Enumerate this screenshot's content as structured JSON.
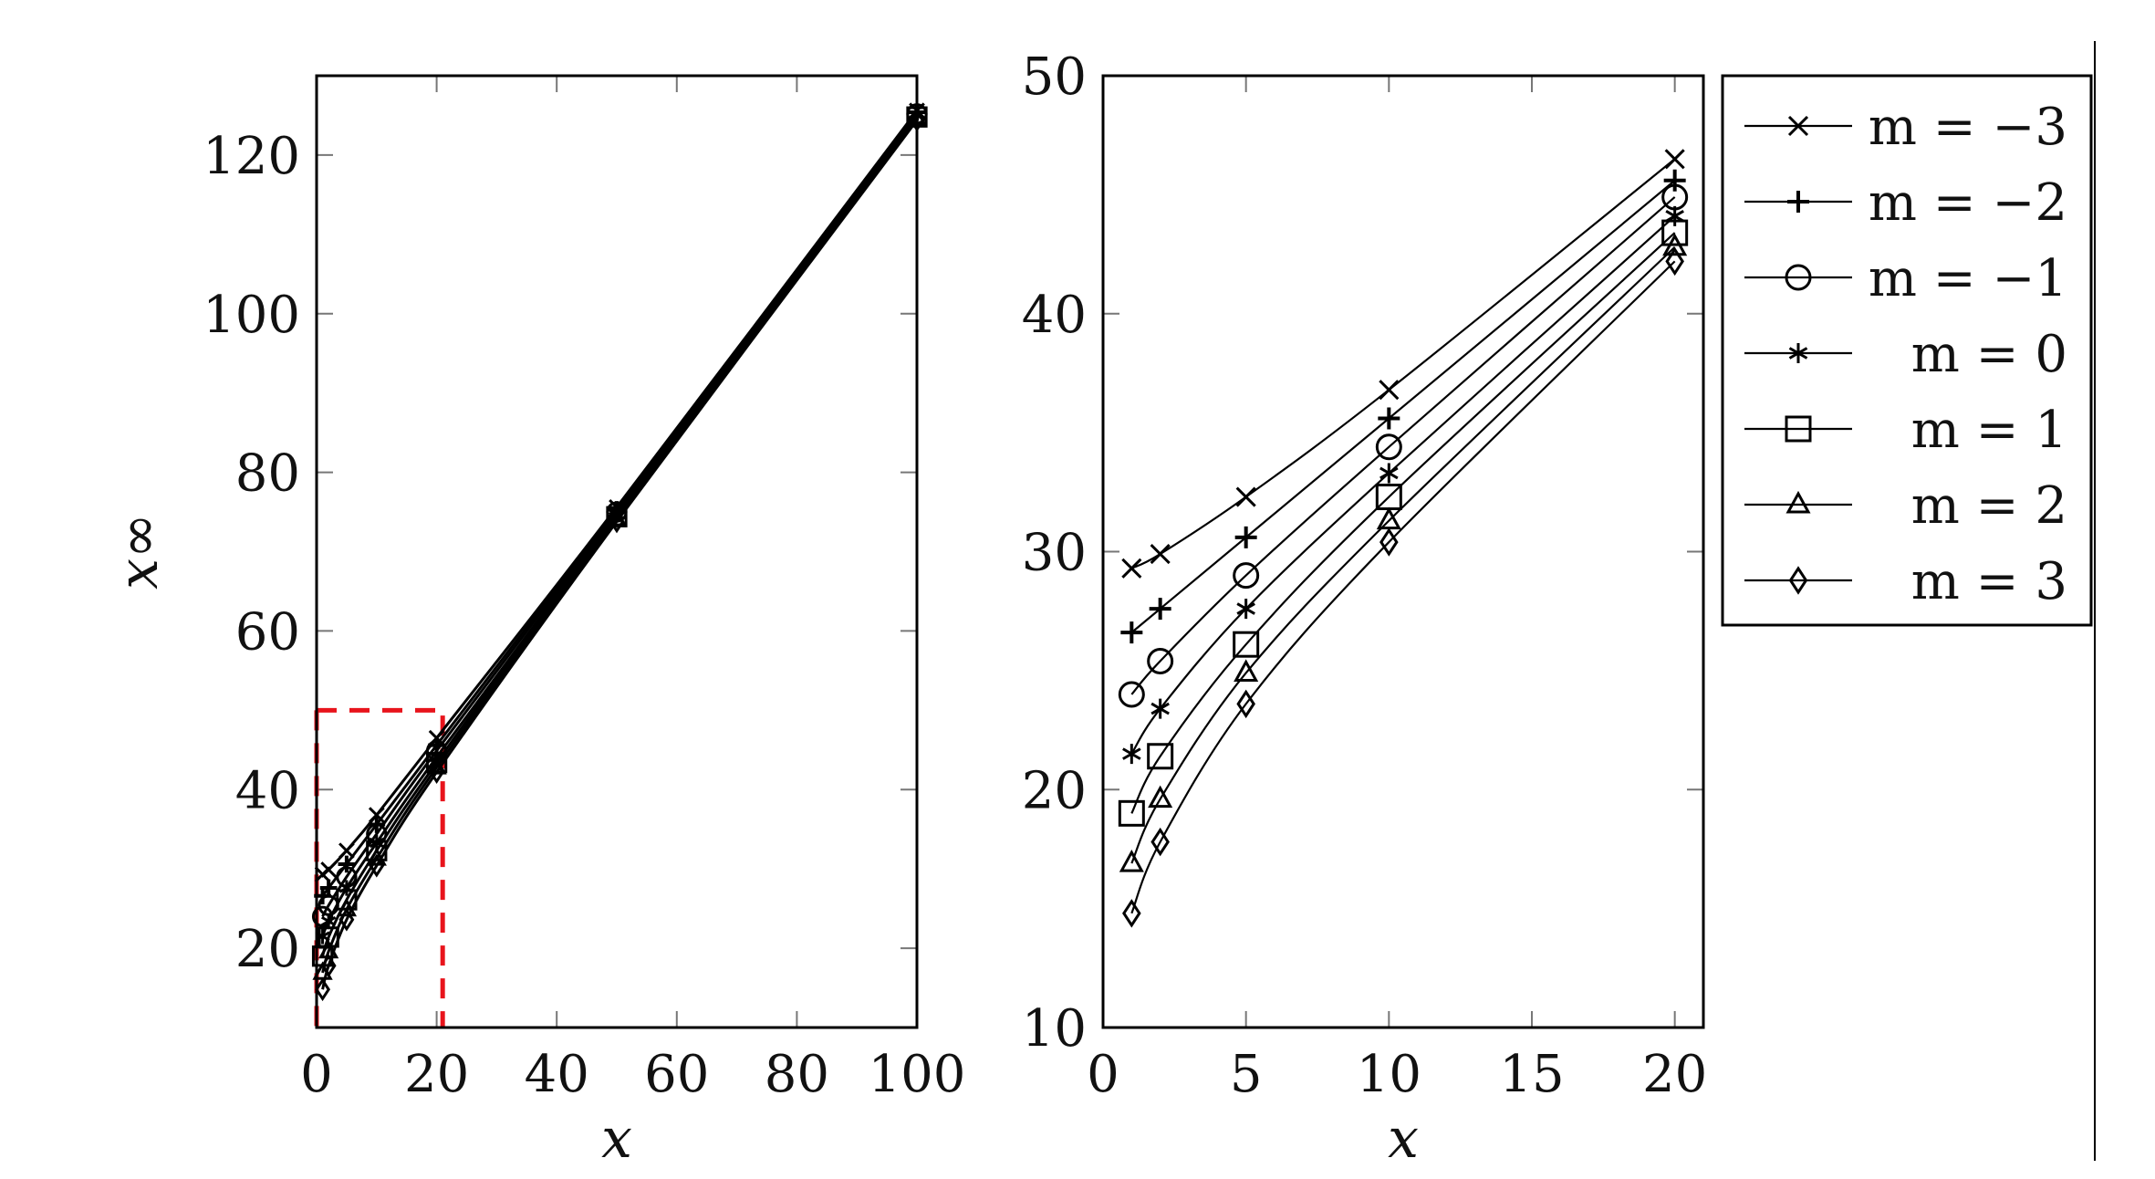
{
  "chart_data": [
    {
      "type": "line",
      "xlabel": "x",
      "ylabel": "x∞",
      "xlim": [
        0,
        100
      ],
      "ylim": [
        10,
        130
      ],
      "xticks": [
        0,
        20,
        40,
        60,
        80,
        100
      ],
      "yticks": [
        20,
        40,
        60,
        80,
        100,
        120
      ],
      "zoom_box": {
        "x": [
          0,
          21
        ],
        "y": [
          10,
          50
        ],
        "color": "#e8141c"
      },
      "grid": false,
      "legend": "none",
      "series": [
        {
          "name": "m = −3",
          "marker": "x",
          "x": [
            1,
            2,
            5,
            10,
            20,
            50,
            100
          ],
          "y": [
            29.3,
            29.9,
            32.3,
            36.8,
            46.5,
            75.6,
            125.6
          ]
        },
        {
          "name": "m = −2",
          "marker": "+",
          "x": [
            1,
            2,
            5,
            10,
            20,
            50,
            100
          ],
          "y": [
            26.6,
            27.6,
            30.6,
            35.6,
            45.6,
            75.3,
            125.4
          ]
        },
        {
          "name": "m = −1",
          "marker": "circle",
          "x": [
            1,
            2,
            5,
            10,
            20,
            50,
            100
          ],
          "y": [
            24.0,
            25.4,
            29.0,
            34.4,
            44.9,
            75.0,
            125.2
          ]
        },
        {
          "name": "m = 0",
          "marker": "asterisk",
          "x": [
            1,
            2,
            5,
            10,
            20,
            50,
            100
          ],
          "y": [
            21.5,
            23.4,
            27.6,
            33.3,
            44.1,
            74.7,
            125.0
          ]
        },
        {
          "name": "m = 1",
          "marker": "square",
          "x": [
            1,
            2,
            5,
            10,
            20,
            50,
            100
          ],
          "y": [
            19.0,
            21.4,
            26.1,
            32.3,
            43.4,
            74.4,
            124.8
          ]
        },
        {
          "name": "m = 2",
          "marker": "triangle",
          "x": [
            1,
            2,
            5,
            10,
            20,
            50,
            100
          ],
          "y": [
            16.9,
            19.6,
            24.9,
            31.3,
            42.8,
            74.1,
            124.6
          ]
        },
        {
          "name": "m = 3",
          "marker": "diamond",
          "x": [
            1,
            2,
            5,
            10,
            20,
            50,
            100
          ],
          "y": [
            14.8,
            17.8,
            23.6,
            30.4,
            42.2,
            73.8,
            124.4
          ]
        }
      ]
    },
    {
      "type": "line",
      "xlabel": "x",
      "ylabel": "",
      "xlim": [
        0,
        21
      ],
      "ylim": [
        10,
        50
      ],
      "xticks": [
        0,
        5,
        10,
        15,
        20
      ],
      "yticks": [
        10,
        20,
        30,
        40,
        50
      ],
      "grid": false,
      "legend": "right",
      "series": [
        {
          "name": "m = −3",
          "marker": "x",
          "x": [
            1,
            2,
            5,
            10,
            20
          ],
          "y": [
            29.3,
            29.9,
            32.3,
            36.8,
            46.5
          ]
        },
        {
          "name": "m = −2",
          "marker": "+",
          "x": [
            1,
            2,
            5,
            10,
            20
          ],
          "y": [
            26.6,
            27.6,
            30.6,
            35.6,
            45.6
          ]
        },
        {
          "name": "m = −1",
          "marker": "circle",
          "x": [
            1,
            2,
            5,
            10,
            20
          ],
          "y": [
            24.0,
            25.4,
            29.0,
            34.4,
            44.9
          ]
        },
        {
          "name": "m = 0",
          "marker": "asterisk",
          "x": [
            1,
            2,
            5,
            10,
            20
          ],
          "y": [
            21.5,
            23.4,
            27.6,
            33.3,
            44.1
          ]
        },
        {
          "name": "m = 1",
          "marker": "square",
          "x": [
            1,
            2,
            5,
            10,
            20
          ],
          "y": [
            19.0,
            21.4,
            26.1,
            32.3,
            43.4
          ]
        },
        {
          "name": "m = 2",
          "marker": "triangle",
          "x": [
            1,
            2,
            5,
            10,
            20
          ],
          "y": [
            16.9,
            19.6,
            24.9,
            31.3,
            42.8
          ]
        },
        {
          "name": "m = 3",
          "marker": "diamond",
          "x": [
            1,
            2,
            5,
            10,
            20
          ],
          "y": [
            14.8,
            17.8,
            23.6,
            30.4,
            42.2
          ]
        }
      ]
    }
  ]
}
